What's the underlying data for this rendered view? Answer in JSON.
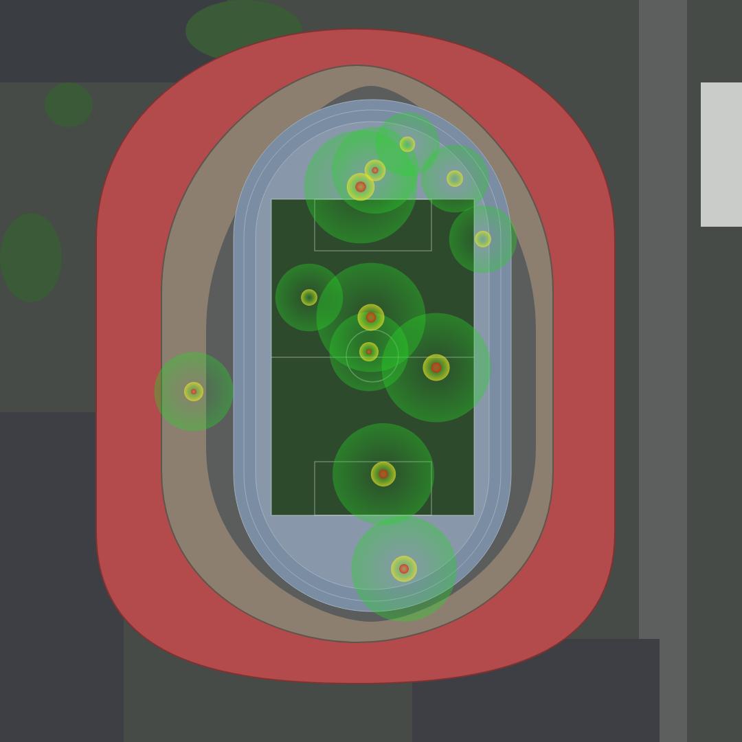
{
  "chart_data": {
    "type": "density",
    "x": [
      525,
      546,
      593,
      662,
      703,
      450,
      540,
      537,
      635,
      558,
      588,
      282
    ],
    "y": [
      272,
      248,
      210,
      260,
      348,
      433,
      462,
      512,
      535,
      690,
      828,
      570
    ],
    "values": [
      0.95,
      0.6,
      0.3,
      0.35,
      0.35,
      0.35,
      0.9,
      0.5,
      0.9,
      0.8,
      0.85,
      0.5
    ],
    "xlim": [
      0,
      1080
    ],
    "ylim": [
      1080,
      0
    ],
    "tick_labels": false
  }
}
